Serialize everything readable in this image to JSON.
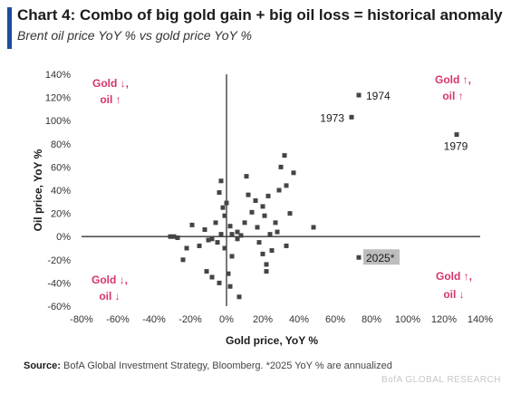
{
  "header": {
    "title": "Chart 4: Combo of big gold gain + big oil loss = historical anomaly",
    "subtitle": "Brent oil price YoY % vs gold price YoY %"
  },
  "footer": {
    "source_label": "Source:",
    "source_text": "BofA Global Investment Strategy, Bloomberg. *2025 YoY % are annualized",
    "watermark": "BofA GLOBAL RESEARCH"
  },
  "chart_data": {
    "type": "scatter",
    "title": "Chart 4: Combo of big gold gain + big oil loss = historical anomaly",
    "subtitle": "Brent oil price YoY % vs gold price YoY %",
    "xlabel": "Gold price, YoY %",
    "ylabel": "Oil price, YoY %",
    "xlim": [
      -80,
      140
    ],
    "ylim": [
      -60,
      140
    ],
    "x_ticks": [
      -80,
      -60,
      -40,
      -20,
      0,
      20,
      40,
      60,
      80,
      100,
      120,
      140
    ],
    "y_ticks": [
      -60,
      -40,
      -20,
      0,
      20,
      40,
      60,
      80,
      100,
      120,
      140
    ],
    "x_tick_labels": [
      "-80%",
      "-60%",
      "-40%",
      "-20%",
      "0%",
      "20%",
      "40%",
      "60%",
      "80%",
      "100%",
      "120%",
      "140%"
    ],
    "y_tick_labels": [
      "-60%",
      "-40%",
      "-20%",
      "0%",
      "20%",
      "40%",
      "60%",
      "80%",
      "100%",
      "120%",
      "140%"
    ],
    "grid": false,
    "point_color": "#444444",
    "highlight_fill": "#bdbdbd",
    "quadrant_color": "#d6336c",
    "points": [
      {
        "x": -12,
        "y": 6
      },
      {
        "x": -15,
        "y": -8
      },
      {
        "x": -8,
        "y": -2
      },
      {
        "x": -5,
        "y": -5
      },
      {
        "x": -3,
        "y": 2
      },
      {
        "x": -6,
        "y": 12
      },
      {
        "x": -10,
        "y": -3
      },
      {
        "x": -2,
        "y": 25
      },
      {
        "x": -4,
        "y": 38
      },
      {
        "x": -3,
        "y": 48
      },
      {
        "x": 0,
        "y": 29
      },
      {
        "x": -1,
        "y": 18
      },
      {
        "x": 2,
        "y": 9
      },
      {
        "x": 3,
        "y": 2
      },
      {
        "x": -19,
        "y": 10
      },
      {
        "x": -24,
        "y": -20
      },
      {
        "x": -27,
        "y": -1
      },
      {
        "x": -29,
        "y": 0
      },
      {
        "x": -31,
        "y": 0
      },
      {
        "x": -22,
        "y": -10
      },
      {
        "x": -11,
        "y": -30
      },
      {
        "x": -8,
        "y": -35
      },
      {
        "x": -4,
        "y": -40
      },
      {
        "x": 2,
        "y": -43
      },
      {
        "x": 7,
        "y": -52
      },
      {
        "x": 1,
        "y": -32
      },
      {
        "x": 3,
        "y": -17
      },
      {
        "x": -1,
        "y": -10
      },
      {
        "x": 6,
        "y": 4
      },
      {
        "x": 8,
        "y": 1
      },
      {
        "x": 10,
        "y": 12
      },
      {
        "x": 11,
        "y": 52
      },
      {
        "x": 14,
        "y": 21
      },
      {
        "x": 16,
        "y": 31
      },
      {
        "x": 17,
        "y": 8
      },
      {
        "x": 18,
        "y": -5
      },
      {
        "x": 20,
        "y": -15
      },
      {
        "x": 20,
        "y": 26
      },
      {
        "x": 21,
        "y": 18
      },
      {
        "x": 22,
        "y": -24
      },
      {
        "x": 22,
        "y": -30
      },
      {
        "x": 23,
        "y": 35
      },
      {
        "x": 24,
        "y": 2
      },
      {
        "x": 25,
        "y": -12
      },
      {
        "x": 27,
        "y": 12
      },
      {
        "x": 28,
        "y": 4
      },
      {
        "x": 29,
        "y": 40
      },
      {
        "x": 30,
        "y": 60
      },
      {
        "x": 32,
        "y": 70
      },
      {
        "x": 33,
        "y": -8
      },
      {
        "x": 35,
        "y": 20
      },
      {
        "x": 37,
        "y": 55
      },
      {
        "x": 12,
        "y": 36
      },
      {
        "x": 6,
        "y": -2
      },
      {
        "x": 48,
        "y": 8
      },
      {
        "x": 33,
        "y": 44
      },
      {
        "x": 69,
        "y": 103,
        "label": "1973"
      },
      {
        "x": 73,
        "y": 122,
        "label": "1974"
      },
      {
        "x": 127,
        "y": 88,
        "label": "1979"
      },
      {
        "x": 73,
        "y": -18,
        "label": "2025*",
        "highlight": true
      }
    ],
    "quadrants": [
      {
        "position": "top-left",
        "gold": "Gold ↓,",
        "oil": "oil ↑"
      },
      {
        "position": "top-right",
        "gold": "Gold ↑,",
        "oil": "oil ↑"
      },
      {
        "position": "bottom-left",
        "gold": "Gold ↓,",
        "oil": "oil ↓"
      },
      {
        "position": "bottom-right",
        "gold": "Gold ↑,",
        "oil": "oil ↓"
      }
    ]
  }
}
